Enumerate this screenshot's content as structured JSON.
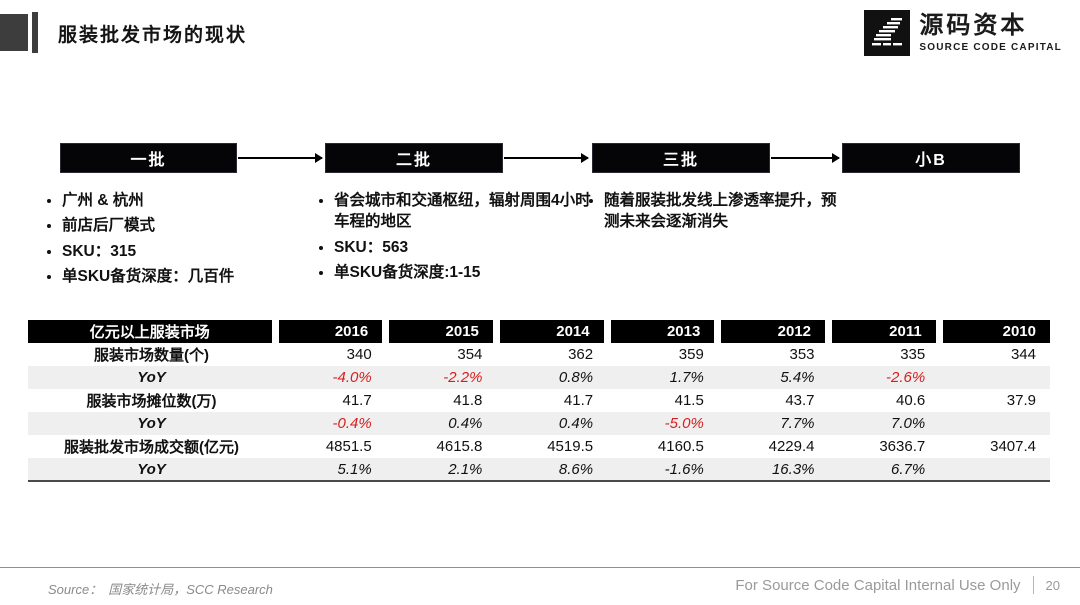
{
  "header": {
    "title": "服装批发市场的现状",
    "logo_cn": "源码资本",
    "logo_en": "SOURCE CODE CAPITAL"
  },
  "flow": {
    "stages": [
      {
        "label": "一批",
        "bullets": [
          "广州 & 杭州",
          "前店后厂模式",
          "SKU：315",
          "单SKU备货深度：几百件"
        ]
      },
      {
        "label": "二批",
        "bullets": [
          "省会城市和交通枢纽，辐射周围4小时车程的地区",
          "SKU：563",
          "单SKU备货深度:1-15"
        ]
      },
      {
        "label": "三批",
        "bullets": [
          "随着服装批发线上渗透率提升，预测未来会逐渐消失"
        ]
      },
      {
        "label": "小B",
        "bullets": []
      }
    ]
  },
  "table": {
    "header": [
      "亿元以上服装市场",
      "2016",
      "2015",
      "2014",
      "2013",
      "2012",
      "2011",
      "2010"
    ],
    "rows": [
      {
        "label": "服装市场数量(个)",
        "italic": false,
        "shaded": false,
        "values": [
          "340",
          "354",
          "362",
          "359",
          "353",
          "335",
          "344"
        ],
        "red": [
          false,
          false,
          false,
          false,
          false,
          false,
          false
        ]
      },
      {
        "label": "YoY",
        "italic": true,
        "shaded": true,
        "values": [
          "-4.0%",
          "-2.2%",
          "0.8%",
          "1.7%",
          "5.4%",
          "-2.6%",
          ""
        ],
        "red": [
          true,
          true,
          false,
          false,
          false,
          true,
          false
        ]
      },
      {
        "label": "服装市场摊位数(万)",
        "italic": false,
        "shaded": false,
        "values": [
          "41.7",
          "41.8",
          "41.7",
          "41.5",
          "43.7",
          "40.6",
          "37.9"
        ],
        "red": [
          false,
          false,
          false,
          false,
          false,
          false,
          false
        ]
      },
      {
        "label": "YoY",
        "italic": true,
        "shaded": true,
        "values": [
          "-0.4%",
          "0.4%",
          "0.4%",
          "-5.0%",
          "7.7%",
          "7.0%",
          ""
        ],
        "red": [
          true,
          false,
          false,
          true,
          false,
          false,
          false
        ]
      },
      {
        "label": "服装批发市场成交额(亿元)",
        "italic": false,
        "shaded": false,
        "values": [
          "4851.5",
          "4615.8",
          "4519.5",
          "4160.5",
          "4229.4",
          "3636.7",
          "3407.4"
        ],
        "red": [
          false,
          false,
          false,
          false,
          false,
          false,
          false
        ]
      },
      {
        "label": "YoY",
        "italic": true,
        "shaded": true,
        "values": [
          "5.1%",
          "2.1%",
          "8.6%",
          "-1.6%",
          "16.3%",
          "6.7%",
          ""
        ],
        "red": [
          false,
          false,
          false,
          false,
          false,
          false,
          false
        ]
      }
    ]
  },
  "footer": {
    "source_label": "Source：",
    "source_text": "国家统计局，SCC Research",
    "right_text": "For Source Code Capital Internal Use Only",
    "page_number": "20"
  },
  "colors": {
    "negative_red": "#d81e1e",
    "shaded_row": "#efefef",
    "box_black": "#050508"
  }
}
